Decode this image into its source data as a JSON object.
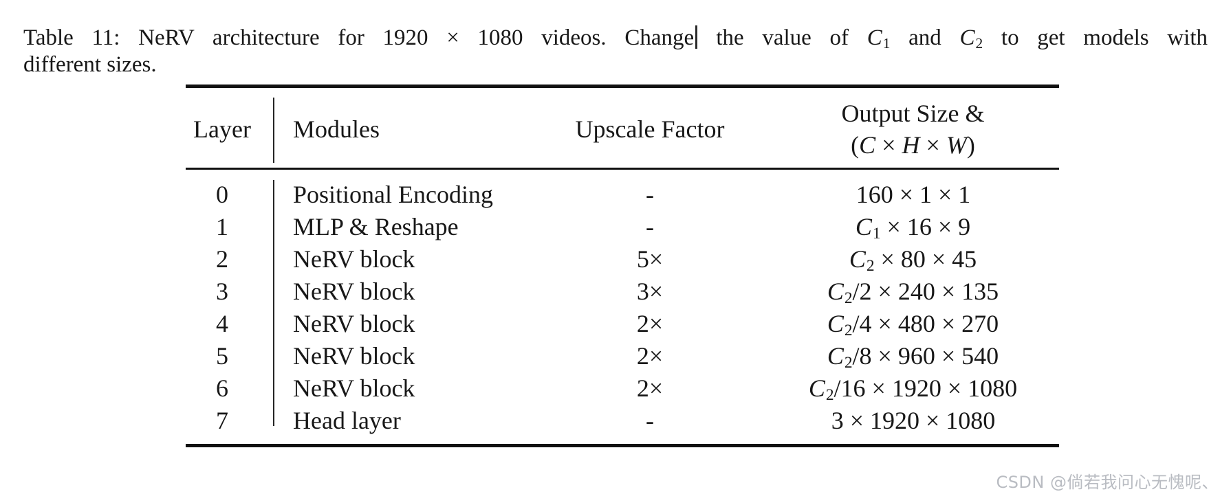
{
  "colors": {
    "text": "#181818",
    "rule": "#111111",
    "watermark": "#b9bcc2",
    "caret": "#2b2b2b"
  },
  "caption": {
    "line1_part1": "Table 11: NeRV architecture for 1920 × 1080 videos. Change",
    "line1_part2": " the value of ",
    "c1_base": "C",
    "c1_sub": "1",
    "line1_part3": " and ",
    "c2_base": "C",
    "c2_sub": "2",
    "line1_part4": " to get models with",
    "line2": "different sizes."
  },
  "table": {
    "headers": {
      "layer": "Layer",
      "modules": "Modules",
      "upscale": "Upscale Factor",
      "output_line1": "Output Size &",
      "output_line2_open": "(",
      "output_c": "C",
      "output_times1": " × ",
      "output_h": "H",
      "output_times2": " × ",
      "output_w": "W",
      "output_line2_close": ")"
    },
    "rows": [
      {
        "layer": "0",
        "module": "Positional Encoding",
        "upscale": "-",
        "out_c": "",
        "out_sub": "",
        "out_rest": "160 × 1 × 1"
      },
      {
        "layer": "1",
        "module": "MLP & Reshape",
        "upscale": "-",
        "out_c": "C",
        "out_sub": "1",
        "out_rest": " × 16 × 9"
      },
      {
        "layer": "2",
        "module": "NeRV block",
        "upscale": "5×",
        "out_c": "C",
        "out_sub": "2",
        "out_rest": " × 80 × 45"
      },
      {
        "layer": "3",
        "module": "NeRV block",
        "upscale": "3×",
        "out_c": "C",
        "out_sub": "2",
        "out_rest": "/2 × 240 × 135"
      },
      {
        "layer": "4",
        "module": "NeRV block",
        "upscale": "2×",
        "out_c": "C",
        "out_sub": "2",
        "out_rest": "/4 × 480 × 270"
      },
      {
        "layer": "5",
        "module": "NeRV block",
        "upscale": "2×",
        "out_c": "C",
        "out_sub": "2",
        "out_rest": "/8 × 960 × 540"
      },
      {
        "layer": "6",
        "module": "NeRV block",
        "upscale": "2×",
        "out_c": "C",
        "out_sub": "2",
        "out_rest": "/16 × 1920 × 1080"
      },
      {
        "layer": "7",
        "module": "Head layer",
        "upscale": "-",
        "out_c": "",
        "out_sub": "",
        "out_rest": "3 × 1920 × 1080"
      }
    ]
  },
  "watermark": {
    "text": "CSDN @倘若我问心无愧呢、"
  }
}
